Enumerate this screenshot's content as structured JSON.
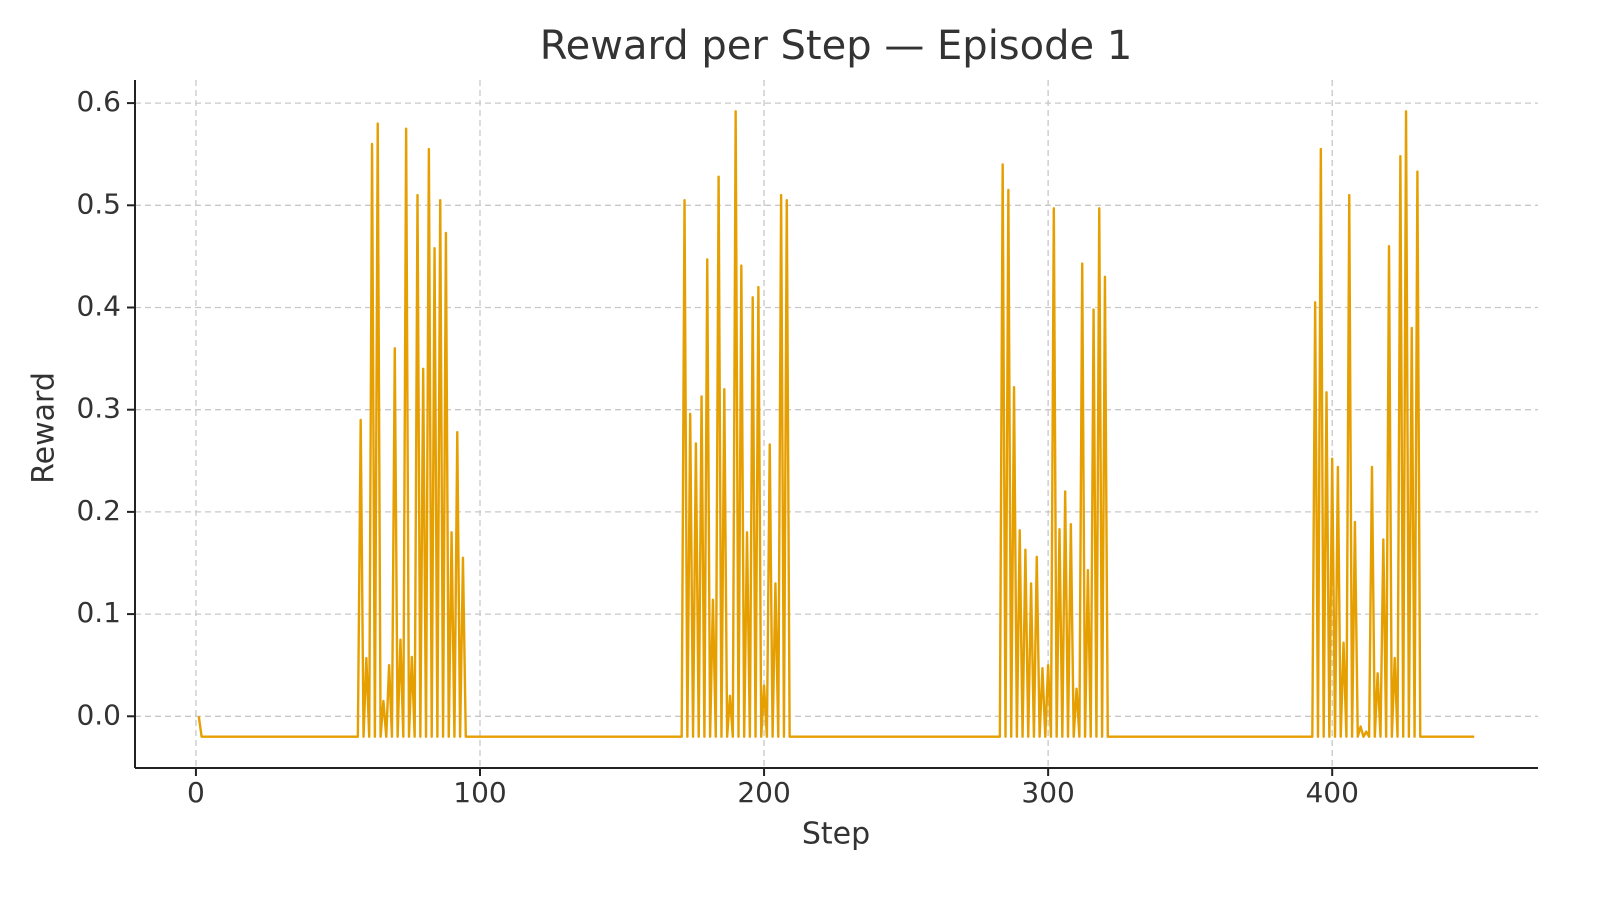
{
  "chart_data": {
    "type": "line",
    "title": "Reward per Step — Episode 1",
    "xlabel": "Step",
    "ylabel": "Reward",
    "color": "#e69f00",
    "grid": true,
    "xlim": [
      -21.45,
      472.45
    ],
    "ylim": [
      -0.0506,
      0.6226
    ],
    "xticks": [
      0,
      100,
      200,
      300,
      400
    ],
    "yticks": [
      {
        "value": 0,
        "label": "0.0"
      },
      0.1,
      0.2,
      0.3,
      0.4,
      0.5,
      0.6
    ],
    "x": [
      1,
      2,
      3,
      4,
      5,
      6,
      7,
      8,
      9,
      10,
      11,
      12,
      13,
      14,
      15,
      16,
      17,
      18,
      19,
      20,
      21,
      22,
      23,
      24,
      25,
      26,
      27,
      28,
      29,
      30,
      31,
      32,
      33,
      34,
      35,
      36,
      37,
      38,
      39,
      40,
      41,
      42,
      43,
      44,
      45,
      46,
      47,
      48,
      49,
      50,
      51,
      52,
      53,
      54,
      55,
      56,
      57,
      58,
      59,
      60,
      61,
      62,
      63,
      64,
      65,
      66,
      67,
      68,
      69,
      70,
      71,
      72,
      73,
      74,
      75,
      76,
      77,
      78,
      79,
      80,
      81,
      82,
      83,
      84,
      85,
      86,
      87,
      88,
      89,
      90,
      91,
      92,
      93,
      94,
      95,
      96,
      97,
      98,
      99,
      100,
      101,
      102,
      103,
      104,
      105,
      106,
      107,
      108,
      109,
      110,
      111,
      112,
      113,
      114,
      115,
      116,
      117,
      118,
      119,
      120,
      121,
      122,
      123,
      124,
      125,
      126,
      127,
      128,
      129,
      130,
      131,
      132,
      133,
      134,
      135,
      136,
      137,
      138,
      139,
      140,
      141,
      142,
      143,
      144,
      145,
      146,
      147,
      148,
      149,
      150,
      151,
      152,
      153,
      154,
      155,
      156,
      157,
      158,
      159,
      160,
      161,
      162,
      163,
      164,
      165,
      166,
      167,
      168,
      169,
      170,
      171,
      172,
      173,
      174,
      175,
      176,
      177,
      178,
      179,
      180,
      181,
      182,
      183,
      184,
      185,
      186,
      187,
      188,
      189,
      190,
      191,
      192,
      193,
      194,
      195,
      196,
      197,
      198,
      199,
      200,
      201,
      202,
      203,
      204,
      205,
      206,
      207,
      208,
      209,
      210,
      211,
      212,
      213,
      214,
      215,
      216,
      217,
      218,
      219,
      220,
      221,
      222,
      223,
      224,
      225,
      226,
      227,
      228,
      229,
      230,
      231,
      232,
      233,
      234,
      235,
      236,
      237,
      238,
      239,
      240,
      241,
      242,
      243,
      244,
      245,
      246,
      247,
      248,
      249,
      250,
      251,
      252,
      253,
      254,
      255,
      256,
      257,
      258,
      259,
      260,
      261,
      262,
      263,
      264,
      265,
      266,
      267,
      268,
      269,
      270,
      271,
      272,
      273,
      274,
      275,
      276,
      277,
      278,
      279,
      280,
      281,
      282,
      283,
      284,
      285,
      286,
      287,
      288,
      289,
      290,
      291,
      292,
      293,
      294,
      295,
      296,
      297,
      298,
      299,
      300,
      301,
      302,
      303,
      304,
      305,
      306,
      307,
      308,
      309,
      310,
      311,
      312,
      313,
      314,
      315,
      316,
      317,
      318,
      319,
      320,
      321,
      322,
      323,
      324,
      325,
      326,
      327,
      328,
      329,
      330,
      331,
      332,
      333,
      334,
      335,
      336,
      337,
      338,
      339,
      340,
      341,
      342,
      343,
      344,
      345,
      346,
      347,
      348,
      349,
      350,
      351,
      352,
      353,
      354,
      355,
      356,
      357,
      358,
      359,
      360,
      361,
      362,
      363,
      364,
      365,
      366,
      367,
      368,
      369,
      370,
      371,
      372,
      373,
      374,
      375,
      376,
      377,
      378,
      379,
      380,
      381,
      382,
      383,
      384,
      385,
      386,
      387,
      388,
      389,
      390,
      391,
      392,
      393,
      394,
      395,
      396,
      397,
      398,
      399,
      400,
      401,
      402,
      403,
      404,
      405,
      406,
      407,
      408,
      409,
      410,
      411,
      412,
      413,
      414,
      415,
      416,
      417,
      418,
      419,
      420,
      421,
      422,
      423,
      424,
      425,
      426,
      427,
      428,
      429,
      430,
      431,
      432,
      433,
      434,
      435,
      436,
      437,
      438,
      439,
      440,
      441,
      442,
      443,
      444,
      445,
      446,
      447,
      448,
      449,
      450
    ],
    "values": [
      0.0,
      -0.02,
      -0.02,
      -0.02,
      -0.02,
      -0.02,
      -0.02,
      -0.02,
      -0.02,
      -0.02,
      -0.02,
      -0.02,
      -0.02,
      -0.02,
      -0.02,
      -0.02,
      -0.02,
      -0.02,
      -0.02,
      -0.02,
      -0.02,
      -0.02,
      -0.02,
      -0.02,
      -0.02,
      -0.02,
      -0.02,
      -0.02,
      -0.02,
      -0.02,
      -0.02,
      -0.02,
      -0.02,
      -0.02,
      -0.02,
      -0.02,
      -0.02,
      -0.02,
      -0.02,
      -0.02,
      -0.02,
      -0.02,
      -0.02,
      -0.02,
      -0.02,
      -0.02,
      -0.02,
      -0.02,
      -0.02,
      -0.02,
      -0.02,
      -0.02,
      -0.02,
      -0.02,
      -0.02,
      -0.02,
      -0.02,
      0.29,
      -0.02,
      0.057,
      -0.02,
      0.56,
      -0.02,
      0.58,
      -0.02,
      0.015,
      -0.02,
      0.05,
      -0.02,
      0.36,
      -0.02,
      0.075,
      -0.02,
      0.575,
      -0.02,
      0.058,
      -0.02,
      0.51,
      -0.02,
      0.34,
      -0.02,
      0.555,
      -0.02,
      0.458,
      -0.02,
      0.505,
      -0.02,
      0.473,
      -0.02,
      0.18,
      -0.02,
      0.278,
      -0.02,
      0.155,
      -0.02,
      -0.02,
      -0.02,
      -0.02,
      -0.02,
      -0.02,
      -0.02,
      -0.02,
      -0.02,
      -0.02,
      -0.02,
      -0.02,
      -0.02,
      -0.02,
      -0.02,
      -0.02,
      -0.02,
      -0.02,
      -0.02,
      -0.02,
      -0.02,
      -0.02,
      -0.02,
      -0.02,
      -0.02,
      -0.02,
      -0.02,
      -0.02,
      -0.02,
      -0.02,
      -0.02,
      -0.02,
      -0.02,
      -0.02,
      -0.02,
      -0.02,
      -0.02,
      -0.02,
      -0.02,
      -0.02,
      -0.02,
      -0.02,
      -0.02,
      -0.02,
      -0.02,
      -0.02,
      -0.02,
      -0.02,
      -0.02,
      -0.02,
      -0.02,
      -0.02,
      -0.02,
      -0.02,
      -0.02,
      -0.02,
      -0.02,
      -0.02,
      -0.02,
      -0.02,
      -0.02,
      -0.02,
      -0.02,
      -0.02,
      -0.02,
      -0.02,
      -0.02,
      -0.02,
      -0.02,
      -0.02,
      -0.02,
      -0.02,
      -0.02,
      -0.02,
      -0.02,
      -0.02,
      -0.02,
      0.505,
      -0.02,
      0.296,
      -0.02,
      0.267,
      -0.02,
      0.313,
      -0.02,
      0.447,
      -0.02,
      0.114,
      -0.02,
      0.528,
      -0.02,
      0.32,
      -0.02,
      0.02,
      -0.02,
      0.592,
      -0.02,
      0.441,
      -0.02,
      0.18,
      -0.02,
      0.41,
      -0.02,
      0.42,
      -0.02,
      0.03,
      -0.02,
      0.266,
      -0.02,
      0.13,
      -0.02,
      0.51,
      -0.02,
      0.505,
      -0.02,
      -0.02,
      -0.02,
      -0.02,
      -0.02,
      -0.02,
      -0.02,
      -0.02,
      -0.02,
      -0.02,
      -0.02,
      -0.02,
      -0.02,
      -0.02,
      -0.02,
      -0.02,
      -0.02,
      -0.02,
      -0.02,
      -0.02,
      -0.02,
      -0.02,
      -0.02,
      -0.02,
      -0.02,
      -0.02,
      -0.02,
      -0.02,
      -0.02,
      -0.02,
      -0.02,
      -0.02,
      -0.02,
      -0.02,
      -0.02,
      -0.02,
      -0.02,
      -0.02,
      -0.02,
      -0.02,
      -0.02,
      -0.02,
      -0.02,
      -0.02,
      -0.02,
      -0.02,
      -0.02,
      -0.02,
      -0.02,
      -0.02,
      -0.02,
      -0.02,
      -0.02,
      -0.02,
      -0.02,
      -0.02,
      -0.02,
      -0.02,
      -0.02,
      -0.02,
      -0.02,
      -0.02,
      -0.02,
      -0.02,
      -0.02,
      -0.02,
      -0.02,
      -0.02,
      -0.02,
      -0.02,
      -0.02,
      -0.02,
      -0.02,
      -0.02,
      -0.02,
      0.54,
      -0.02,
      0.515,
      -0.02,
      0.322,
      -0.02,
      0.182,
      -0.02,
      0.163,
      -0.02,
      0.13,
      -0.02,
      0.156,
      -0.02,
      0.047,
      -0.02,
      0.05,
      -0.02,
      0.497,
      -0.02,
      0.183,
      -0.02,
      0.22,
      -0.02,
      0.188,
      -0.02,
      0.027,
      -0.02,
      0.443,
      -0.02,
      0.143,
      -0.02,
      0.398,
      -0.02,
      0.497,
      -0.02,
      0.43,
      -0.02,
      -0.02,
      -0.02,
      -0.02,
      -0.02,
      -0.02,
      -0.02,
      -0.02,
      -0.02,
      -0.02,
      -0.02,
      -0.02,
      -0.02,
      -0.02,
      -0.02,
      -0.02,
      -0.02,
      -0.02,
      -0.02,
      -0.02,
      -0.02,
      -0.02,
      -0.02,
      -0.02,
      -0.02,
      -0.02,
      -0.02,
      -0.02,
      -0.02,
      -0.02,
      -0.02,
      -0.02,
      -0.02,
      -0.02,
      -0.02,
      -0.02,
      -0.02,
      -0.02,
      -0.02,
      -0.02,
      -0.02,
      -0.02,
      -0.02,
      -0.02,
      -0.02,
      -0.02,
      -0.02,
      -0.02,
      -0.02,
      -0.02,
      -0.02,
      -0.02,
      -0.02,
      -0.02,
      -0.02,
      -0.02,
      -0.02,
      -0.02,
      -0.02,
      -0.02,
      -0.02,
      -0.02,
      -0.02,
      -0.02,
      -0.02,
      -0.02,
      -0.02,
      -0.02,
      -0.02,
      -0.02,
      -0.02,
      -0.02,
      -0.02,
      0.405,
      -0.02,
      0.555,
      -0.02,
      0.317,
      -0.02,
      0.252,
      -0.02,
      0.244,
      -0.02,
      0.072,
      -0.02,
      0.51,
      -0.02,
      0.19,
      -0.02,
      -0.01,
      -0.02,
      -0.015,
      -0.02,
      0.244,
      -0.02,
      0.042,
      -0.02,
      0.173,
      -0.02,
      0.46,
      -0.02,
      0.057,
      -0.02,
      0.548,
      -0.02,
      0.592,
      -0.02,
      0.38,
      -0.02,
      0.533,
      -0.02,
      -0.02,
      -0.02,
      -0.02,
      -0.02,
      -0.02,
      -0.02,
      -0.02,
      -0.02,
      -0.02,
      -0.02,
      -0.02,
      -0.02,
      -0.02,
      -0.02,
      -0.02,
      -0.02,
      -0.02,
      -0.02,
      -0.02
    ]
  }
}
